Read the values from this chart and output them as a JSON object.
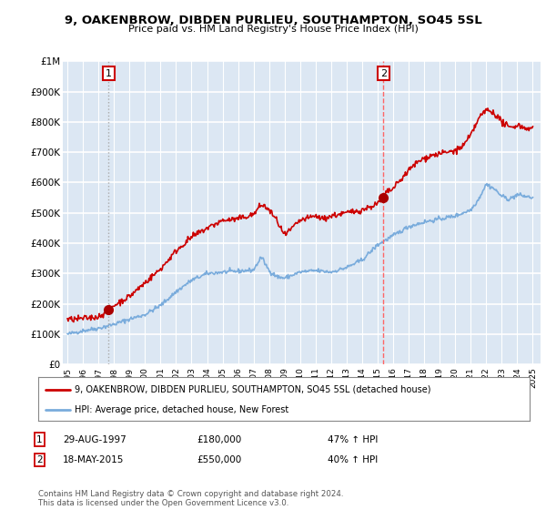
{
  "title": "9, OAKENBROW, DIBDEN PURLIEU, SOUTHAMPTON, SO45 5SL",
  "subtitle": "Price paid vs. HM Land Registry's House Price Index (HPI)",
  "ylabel_ticks": [
    "£0",
    "£100K",
    "£200K",
    "£300K",
    "£400K",
    "£500K",
    "£600K",
    "£700K",
    "£800K",
    "£900K",
    "£1M"
  ],
  "ytick_values": [
    0,
    100000,
    200000,
    300000,
    400000,
    500000,
    600000,
    700000,
    800000,
    900000,
    1000000
  ],
  "ylim": [
    0,
    1000000
  ],
  "xlim_start": 1994.7,
  "xlim_end": 2025.5,
  "sale1_x": 1997.65,
  "sale1_y": 180000,
  "sale1_label": "1",
  "sale2_x": 2015.38,
  "sale2_y": 550000,
  "sale2_label": "2",
  "vline1_x": 1997.65,
  "vline2_x": 2015.38,
  "red_line_color": "#cc0000",
  "blue_line_color": "#7aacdc",
  "vline1_color": "#aaaaaa",
  "vline2_color": "#ff6666",
  "dot_color": "#aa0000",
  "box_color": "#cc0000",
  "bg_color": "#dce7f3",
  "grid_color": "#ffffff",
  "legend_label1": "9, OAKENBROW, DIBDEN PURLIEU, SOUTHAMPTON, SO45 5SL (detached house)",
  "legend_label2": "HPI: Average price, detached house, New Forest",
  "annotation1_date": "29-AUG-1997",
  "annotation1_price": "£180,000",
  "annotation1_hpi": "47% ↑ HPI",
  "annotation2_date": "18-MAY-2015",
  "annotation2_price": "£550,000",
  "annotation2_hpi": "40% ↑ HPI",
  "footnote": "Contains HM Land Registry data © Crown copyright and database right 2024.\nThis data is licensed under the Open Government Licence v3.0."
}
